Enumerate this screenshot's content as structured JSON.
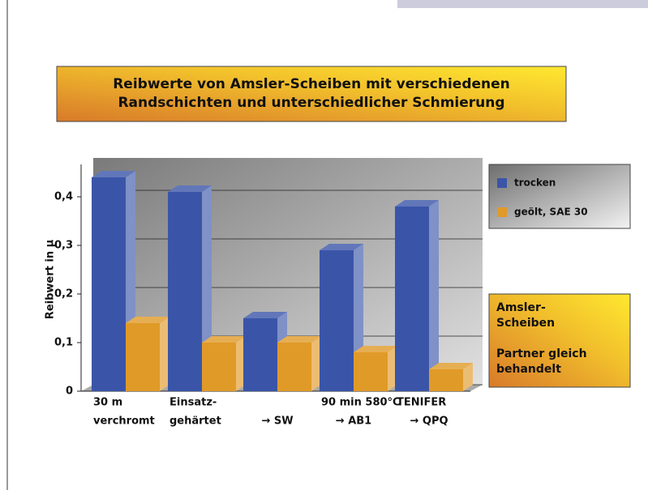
{
  "chart_data": {
    "type": "bar3d",
    "title": [
      "Reibwerte von Amsler-Scheiben mit verschiedenen",
      "Randschichten und unterschiedlicher  Schmierung"
    ],
    "y_label": "Reibwert in µ",
    "categories": [
      [
        "30 m",
        "verchromt"
      ],
      [
        "Einsatz-",
        "gehärtet"
      ],
      [
        "→ SW"
      ],
      [
        "90 min 580°C",
        "→ AB1"
      ],
      [
        "TENIFER",
        "→ QPQ"
      ]
    ],
    "series": [
      {
        "name": "trocken",
        "color": "#3a55a8",
        "values": [
          0.44,
          0.41,
          0.15,
          0.29,
          0.38
        ]
      },
      {
        "name": "geölt, SAE 30",
        "color": "#e09a28",
        "values": [
          0.14,
          0.1,
          0.1,
          0.08,
          0.045
        ]
      }
    ],
    "ylim": [
      0,
      0.46
    ],
    "yticks": [
      {
        "value": 0,
        "label": "0"
      },
      {
        "value": 0.1,
        "label": "0,1"
      },
      {
        "value": 0.2,
        "label": "0,2"
      },
      {
        "value": 0.3,
        "label": "0,3"
      },
      {
        "value": 0.4,
        "label": "0,4"
      }
    ],
    "grid": true,
    "note": [
      "Amsler-",
      "Scheiben",
      "Partner gleich",
      "behandelt"
    ]
  }
}
